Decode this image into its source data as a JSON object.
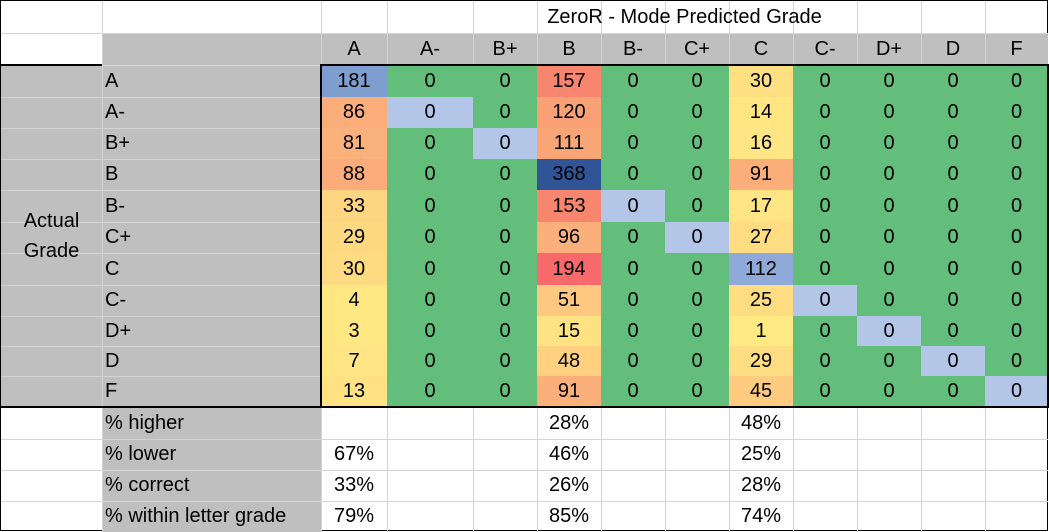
{
  "title": "ZeroR - Mode Predicted Grade",
  "row_axis_label": [
    "Actual",
    "Grade"
  ],
  "grades": [
    "A",
    "A-",
    "B+",
    "B",
    "B-",
    "C+",
    "C",
    "C-",
    "D+",
    "D",
    "F"
  ],
  "matrix": [
    [
      "181",
      "0",
      "0",
      "157",
      "0",
      "0",
      "30",
      "0",
      "0",
      "0",
      "0"
    ],
    [
      "86",
      "0",
      "0",
      "120",
      "0",
      "0",
      "14",
      "0",
      "0",
      "0",
      "0"
    ],
    [
      "81",
      "0",
      "0",
      "111",
      "0",
      "0",
      "16",
      "0",
      "0",
      "0",
      "0"
    ],
    [
      "88",
      "0",
      "0",
      "368",
      "0",
      "0",
      "91",
      "0",
      "0",
      "0",
      "0"
    ],
    [
      "33",
      "0",
      "0",
      "153",
      "0",
      "0",
      "17",
      "0",
      "0",
      "0",
      "0"
    ],
    [
      "29",
      "0",
      "0",
      "96",
      "0",
      "0",
      "27",
      "0",
      "0",
      "0",
      "0"
    ],
    [
      "30",
      "0",
      "0",
      "194",
      "0",
      "0",
      "112",
      "0",
      "0",
      "0",
      "0"
    ],
    [
      "4",
      "0",
      "0",
      "51",
      "0",
      "0",
      "25",
      "0",
      "0",
      "0",
      "0"
    ],
    [
      "3",
      "0",
      "0",
      "15",
      "0",
      "0",
      "1",
      "0",
      "0",
      "0",
      "0"
    ],
    [
      "7",
      "0",
      "0",
      "48",
      "0",
      "0",
      "29",
      "0",
      "0",
      "0",
      "0"
    ],
    [
      "13",
      "0",
      "0",
      "91",
      "0",
      "0",
      "45",
      "0",
      "0",
      "0",
      "0"
    ]
  ],
  "fills": [
    [
      "#7f9ed0",
      "#63be7b",
      "#63be7b",
      "#f8856d",
      "#63be7b",
      "#63be7b",
      "#fedf82",
      "#63be7b",
      "#63be7b",
      "#63be7b",
      "#63be7b"
    ],
    [
      "#fbae7a",
      "#b4c6e7",
      "#63be7b",
      "#f9a075",
      "#63be7b",
      "#63be7b",
      "#ffe683",
      "#63be7b",
      "#63be7b",
      "#63be7b",
      "#63be7b"
    ],
    [
      "#fbb17b",
      "#63be7b",
      "#b4c6e7",
      "#f9a677",
      "#63be7b",
      "#63be7b",
      "#ffe584",
      "#63be7b",
      "#63be7b",
      "#63be7b",
      "#63be7b"
    ],
    [
      "#fbac7a",
      "#63be7b",
      "#63be7b",
      "#2f5597",
      "#63be7b",
      "#63be7b",
      "#fbae7a",
      "#63be7b",
      "#63be7b",
      "#63be7b",
      "#63be7b"
    ],
    [
      "#fed681",
      "#63be7b",
      "#63be7b",
      "#f8866e",
      "#b4c6e7",
      "#63be7b",
      "#ffe584",
      "#63be7b",
      "#63be7b",
      "#63be7b",
      "#63be7b"
    ],
    [
      "#fed981",
      "#63be7b",
      "#63be7b",
      "#fbb07b",
      "#63be7b",
      "#b4c6e7",
      "#fedd82",
      "#63be7b",
      "#63be7b",
      "#63be7b",
      "#63be7b"
    ],
    [
      "#fedb82",
      "#63be7b",
      "#63be7b",
      "#f8696b",
      "#63be7b",
      "#63be7b",
      "#8fa9d8",
      "#63be7b",
      "#63be7b",
      "#63be7b",
      "#63be7b"
    ],
    [
      "#ffe784",
      "#63be7b",
      "#63be7b",
      "#fec880",
      "#63be7b",
      "#63be7b",
      "#fedd82",
      "#b4c6e7",
      "#63be7b",
      "#63be7b",
      "#63be7b"
    ],
    [
      "#ffe884",
      "#63be7b",
      "#63be7b",
      "#ffe283",
      "#63be7b",
      "#63be7b",
      "#ffea84",
      "#63be7b",
      "#b4c6e7",
      "#63be7b",
      "#63be7b"
    ],
    [
      "#ffe584",
      "#63be7b",
      "#63be7b",
      "#fed080",
      "#63be7b",
      "#63be7b",
      "#fedd82",
      "#63be7b",
      "#63be7b",
      "#b4c6e7",
      "#63be7b"
    ],
    [
      "#ffe283",
      "#63be7b",
      "#63be7b",
      "#fbb07b",
      "#63be7b",
      "#63be7b",
      "#fecb80",
      "#63be7b",
      "#63be7b",
      "#63be7b",
      "#b4c6e7"
    ]
  ],
  "summary": [
    {
      "label": "% higher",
      "values": [
        "",
        "",
        "",
        "28%",
        "",
        "",
        "48%",
        "",
        "",
        "",
        ""
      ]
    },
    {
      "label": "% lower",
      "values": [
        "67%",
        "",
        "",
        "46%",
        "",
        "",
        "25%",
        "",
        "",
        "",
        ""
      ]
    },
    {
      "label": "% correct",
      "values": [
        "33%",
        "",
        "",
        "26%",
        "",
        "",
        "28%",
        "",
        "",
        "",
        ""
      ]
    },
    {
      "label": "% within letter grade",
      "values": [
        "79%",
        "",
        "",
        "85%",
        "",
        "",
        "74%",
        "",
        "",
        "",
        ""
      ]
    }
  ]
}
